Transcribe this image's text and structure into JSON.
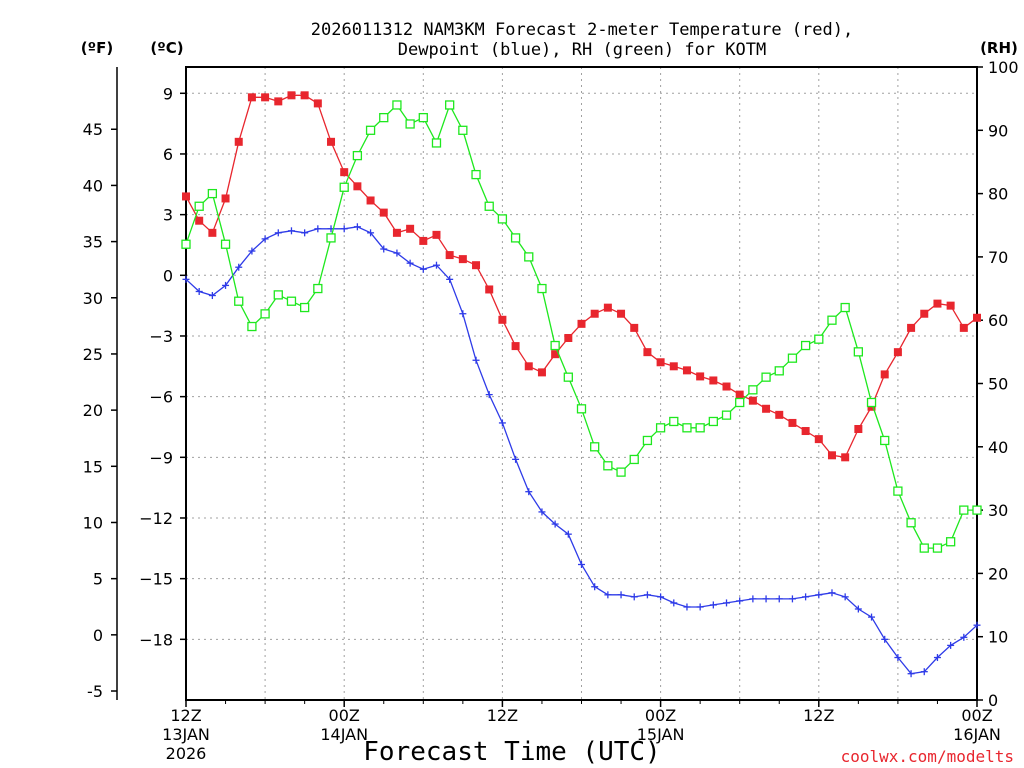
{
  "chart_data": {
    "type": "line",
    "title_line1": "2026011312 NAM3KM Forecast 2-meter Temperature (red),",
    "title_line2": "Dewpoint (blue), RH (green) for KOTM",
    "xlabel": "Forecast Time (UTC)",
    "left_outer_unit": "(ºF)",
    "left_inner_unit": "(ºC)",
    "right_unit": "(RH)",
    "credit": "coolwx.com/modelts",
    "x_range_hours": [
      0,
      60
    ],
    "ylim_c": [
      -21,
      10.3
    ],
    "ylim_rh": [
      0,
      100
    ],
    "x_ticks": [
      {
        "hour": 0,
        "label": "12Z",
        "sub1": "13JAN",
        "sub2": "2026"
      },
      {
        "hour": 12,
        "label": "00Z",
        "sub1": "14JAN",
        "sub2": ""
      },
      {
        "hour": 24,
        "label": "12Z",
        "sub1": "",
        "sub2": ""
      },
      {
        "hour": 36,
        "label": "00Z",
        "sub1": "15JAN",
        "sub2": ""
      },
      {
        "hour": 48,
        "label": "12Z",
        "sub1": "",
        "sub2": ""
      },
      {
        "hour": 60,
        "label": "00Z",
        "sub1": "16JAN",
        "sub2": ""
      }
    ],
    "c_ticks": [
      9,
      6,
      3,
      0,
      -3,
      -6,
      -9,
      -12,
      -15,
      -18
    ],
    "f_ticks": [
      45,
      40,
      35,
      30,
      25,
      20,
      15,
      10,
      5,
      0,
      -5
    ],
    "rh_ticks": [
      100,
      90,
      80,
      70,
      60,
      50,
      40,
      30,
      20,
      10,
      0
    ],
    "series": [
      {
        "name": "Temperature",
        "units": "C",
        "color": "#e8262e",
        "marker": "filled-square",
        "values": [
          3.9,
          2.7,
          2.1,
          3.8,
          6.6,
          8.8,
          8.8,
          8.6,
          8.9,
          8.9,
          8.5,
          6.6,
          5.1,
          4.4,
          3.7,
          3.1,
          2.1,
          2.3,
          1.7,
          2.0,
          1.0,
          0.8,
          0.5,
          -0.7,
          -2.2,
          -3.5,
          -4.5,
          -4.8,
          -3.9,
          -3.1,
          -2.4,
          -1.9,
          -1.6,
          -1.9,
          -2.6,
          -3.8,
          -4.3,
          -4.5,
          -4.7,
          -5.0,
          -5.2,
          -5.5,
          -5.9,
          -6.2,
          -6.6,
          -6.9,
          -7.3,
          -7.7,
          -8.1,
          -8.9,
          -9.0,
          -7.6,
          -6.5,
          -4.9,
          -3.8,
          -2.6,
          -1.9,
          -1.4,
          -1.5,
          -2.6,
          -2.1
        ]
      },
      {
        "name": "Dewpoint",
        "units": "C",
        "color": "#2e3be8",
        "marker": "plus",
        "values": [
          -0.2,
          -0.8,
          -1.0,
          -0.5,
          0.4,
          1.2,
          1.8,
          2.1,
          2.2,
          2.1,
          2.3,
          2.3,
          2.3,
          2.4,
          2.1,
          1.3,
          1.1,
          0.6,
          0.3,
          0.5,
          -0.2,
          -1.9,
          -4.2,
          -5.9,
          -7.3,
          -9.1,
          -10.7,
          -11.7,
          -12.3,
          -12.8,
          -14.3,
          -15.4,
          -15.8,
          -15.8,
          -15.9,
          -15.8,
          -15.9,
          -16.2,
          -16.4,
          -16.4,
          -16.3,
          -16.2,
          -16.1,
          -16.0,
          -16.0,
          -16.0,
          -16.0,
          -15.9,
          -15.8,
          -15.7,
          -15.9,
          -16.5,
          -16.9,
          -18.0,
          -18.9,
          -19.7,
          -19.6,
          -18.9,
          -18.3,
          -17.9,
          -17.3
        ]
      },
      {
        "name": "Relative Humidity",
        "units": "%",
        "color": "#1ee81e",
        "marker": "open-square",
        "values": [
          72,
          78,
          80,
          72,
          63,
          59,
          61,
          64,
          63,
          62,
          65,
          73,
          81,
          86,
          90,
          92,
          94,
          91,
          92,
          88,
          94,
          90,
          83,
          78,
          76,
          73,
          70,
          65,
          56,
          51,
          46,
          40,
          37,
          36,
          38,
          41,
          43,
          44,
          43,
          43,
          44,
          45,
          47,
          49,
          51,
          52,
          54,
          56,
          57,
          60,
          62,
          55,
          47,
          41,
          33,
          28,
          24,
          24,
          25,
          30,
          30
        ]
      }
    ]
  }
}
